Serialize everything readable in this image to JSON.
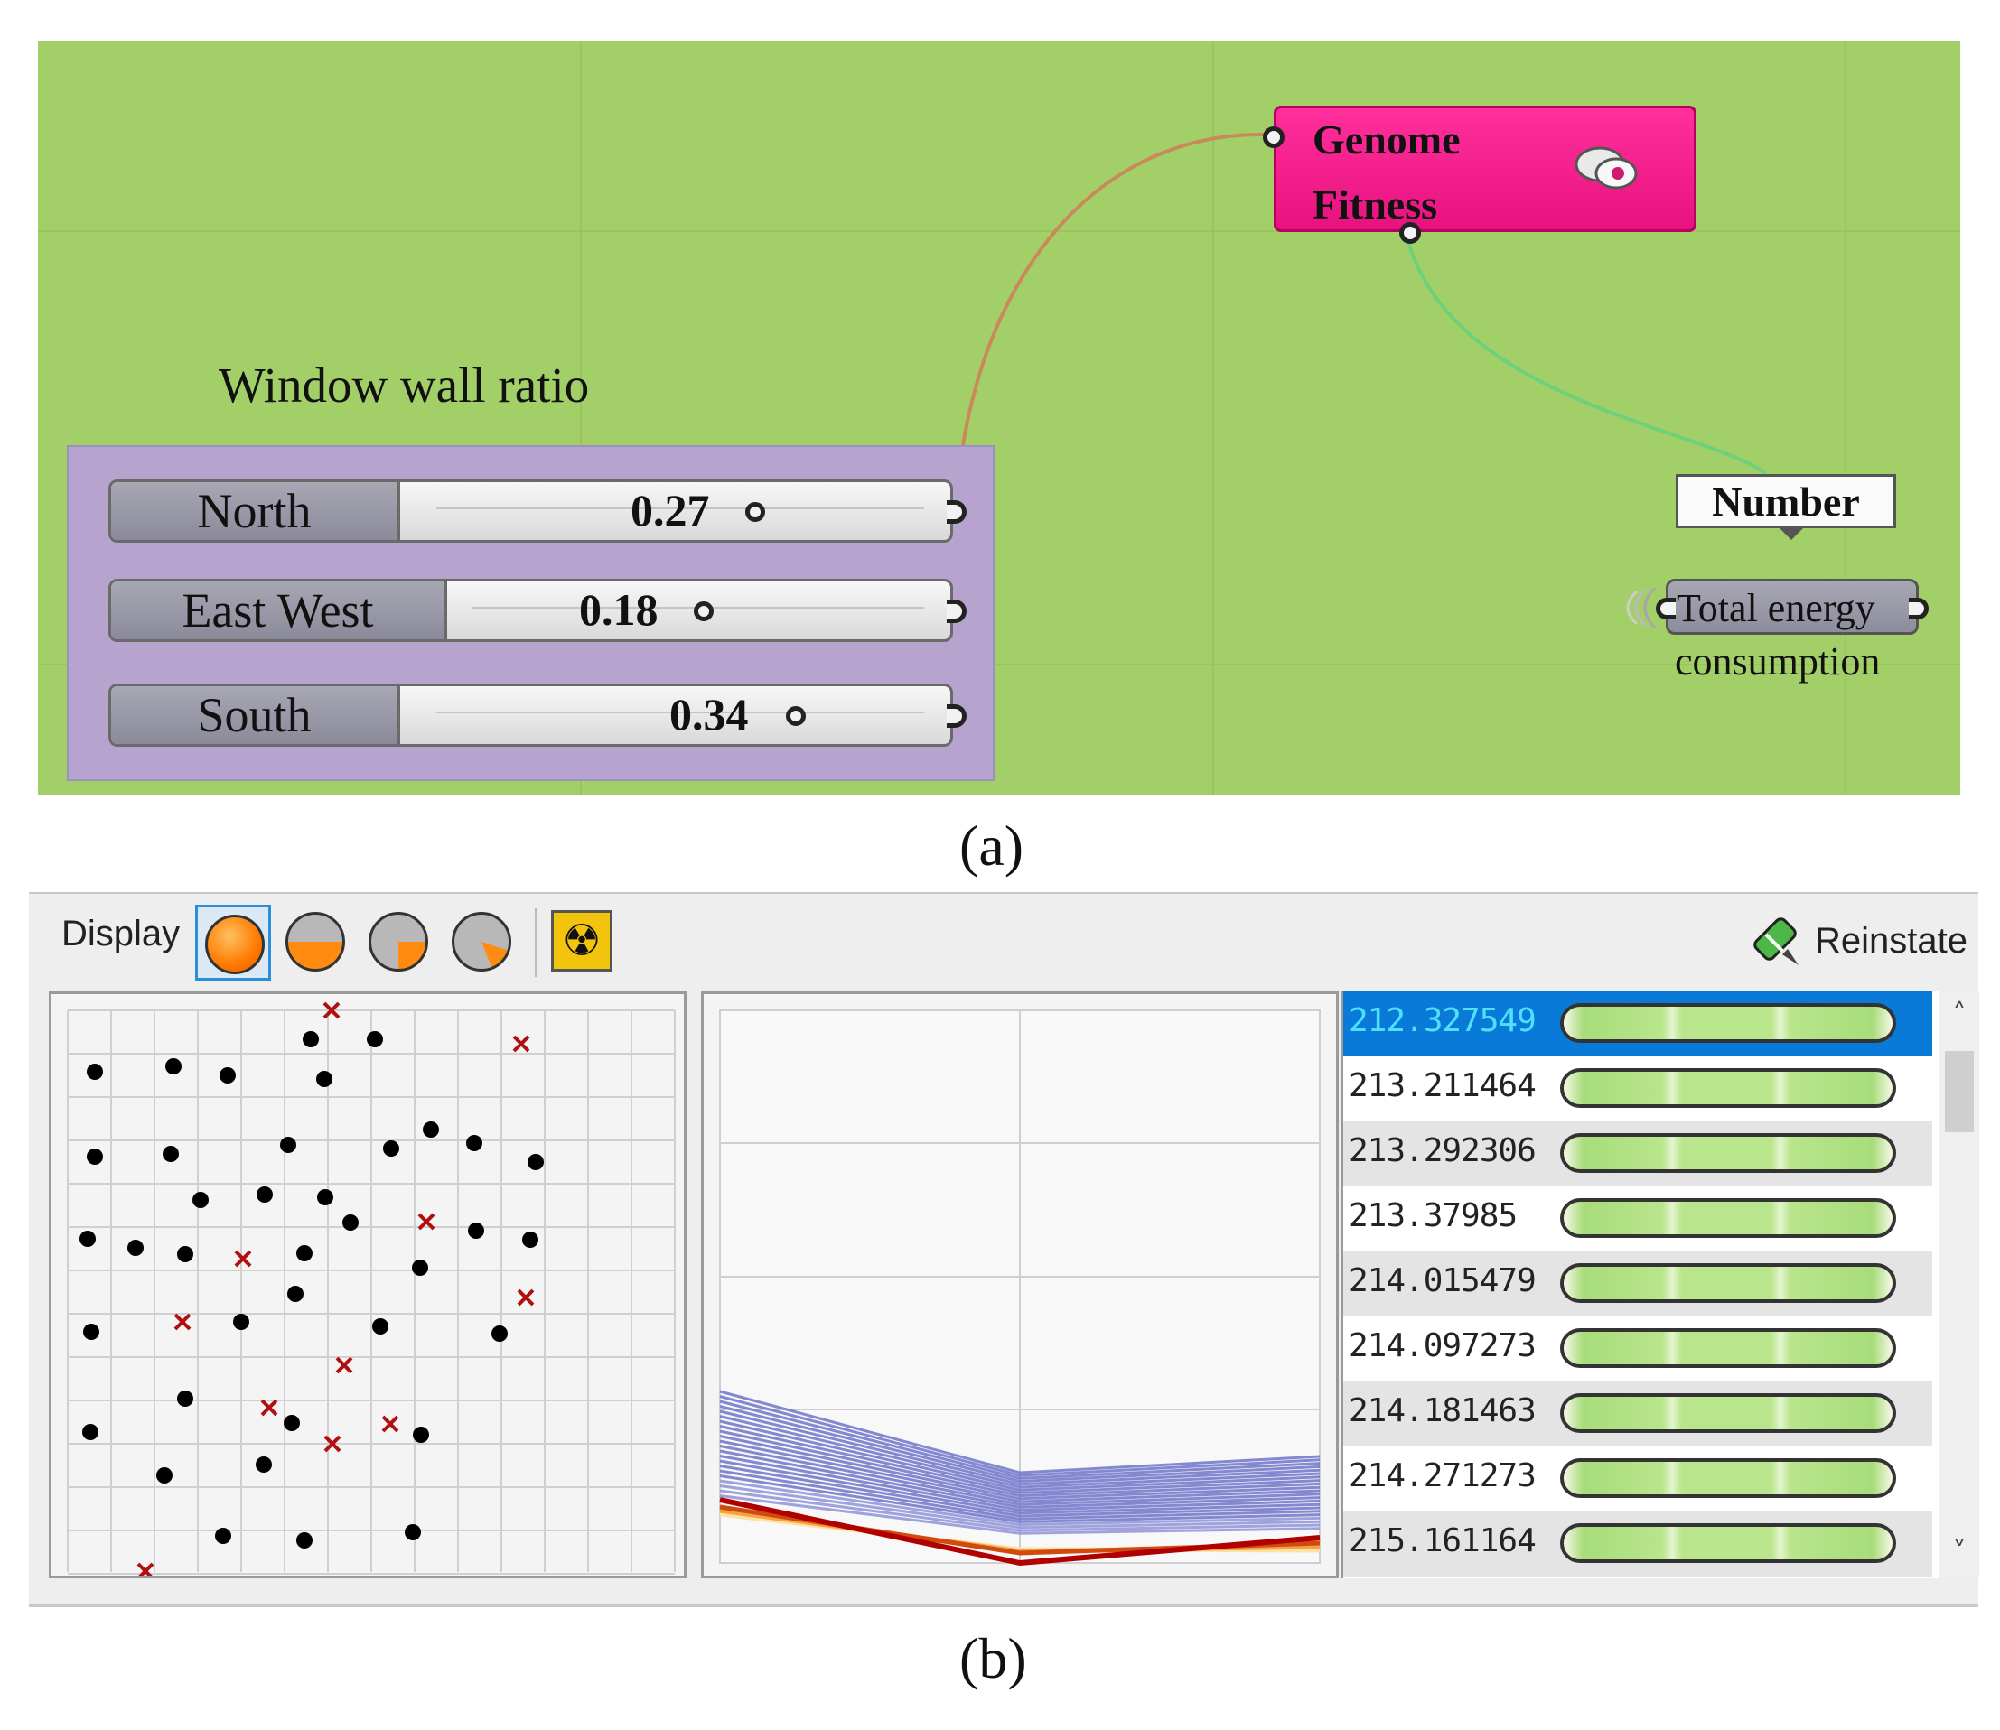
{
  "panel_a": {
    "canvas_title": "Window wall ratio",
    "sliders": [
      {
        "name": "North",
        "value": "0.27"
      },
      {
        "name": "East West",
        "value": "0.18"
      },
      {
        "name": "South",
        "value": "0.34"
      }
    ],
    "genome_component": {
      "line1": "Genome",
      "line2": "Fitness",
      "color": "#ff2f9b"
    },
    "number_tag": "Number",
    "output_node": {
      "line1": "Total energy",
      "line2": "consumption"
    },
    "caption": "(a)"
  },
  "panel_b": {
    "toolbar": {
      "display_label": "Display",
      "display_modes": [
        "full-icon",
        "three-quarter-icon",
        "half-icon",
        "quarter-icon"
      ],
      "radioactive_icon": "radioactive-icon",
      "reinstate_label": "Reinstate"
    },
    "genome_list": {
      "values": [
        "212.327549",
        "213.211464",
        "213.292306",
        "213.37985",
        "214.015479",
        "214.097273",
        "214.181463",
        "214.271273",
        "215.161164"
      ],
      "selected_index": 0
    },
    "scrollbar": {
      "up": "˄",
      "down": "˅"
    },
    "caption": "(b)"
  }
}
